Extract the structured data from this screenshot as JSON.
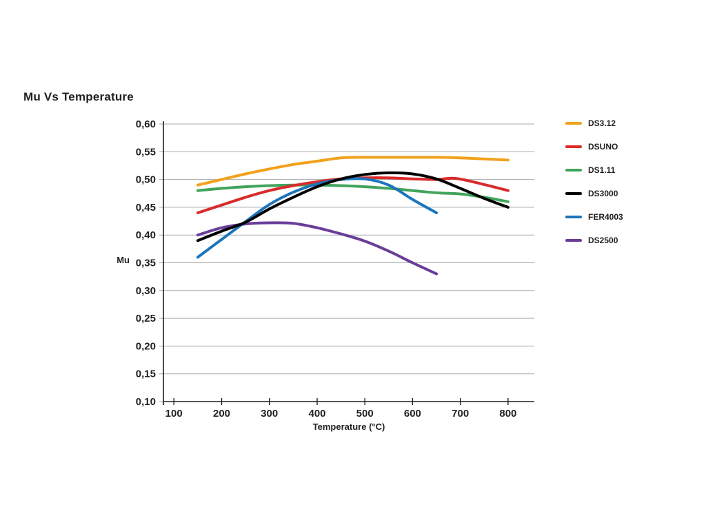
{
  "title": "Mu Vs Temperature",
  "chart_data": {
    "type": "line",
    "title": "Mu Vs Temperature",
    "xlabel": "Temperature (°C)",
    "ylabel": "Mu",
    "xlim": [
      78,
      855
    ],
    "ylim": [
      0.1,
      0.6
    ],
    "xticks": [
      100,
      200,
      300,
      400,
      500,
      600,
      700,
      800
    ],
    "yticks": [
      0.6,
      0.55,
      0.5,
      0.45,
      0.4,
      0.35,
      0.3,
      0.25,
      0.2,
      0.15,
      0.1
    ],
    "ytick_labels": [
      "0,60",
      "0,55",
      "0,50",
      "0,45",
      "0,40",
      "0,35",
      "0,30",
      "0,25",
      "0,20",
      "0,15",
      "0,10"
    ],
    "grid": "horizontal",
    "legend_position": "right",
    "colors": {
      "grid": "#A7A9AC",
      "axis": "#231F20",
      "text": "#231F20",
      "background": "#FFFFFF"
    },
    "series": [
      {
        "name": "DS3.12",
        "color": "#F2A11C",
        "points": [
          [
            150,
            0.49
          ],
          [
            200,
            0.5
          ],
          [
            250,
            0.51
          ],
          [
            300,
            0.519
          ],
          [
            350,
            0.527
          ],
          [
            400,
            0.533
          ],
          [
            450,
            0.539
          ],
          [
            500,
            0.54
          ],
          [
            550,
            0.54
          ],
          [
            600,
            0.54
          ],
          [
            650,
            0.54
          ],
          [
            700,
            0.539
          ],
          [
            750,
            0.537
          ],
          [
            800,
            0.535
          ]
        ]
      },
      {
        "name": "DSUNO",
        "color": "#D92B2B",
        "points": [
          [
            150,
            0.44
          ],
          [
            200,
            0.454
          ],
          [
            250,
            0.468
          ],
          [
            300,
            0.48
          ],
          [
            350,
            0.489
          ],
          [
            400,
            0.496
          ],
          [
            450,
            0.501
          ],
          [
            500,
            0.503
          ],
          [
            550,
            0.503
          ],
          [
            600,
            0.501
          ],
          [
            650,
            0.5
          ],
          [
            690,
            0.502
          ],
          [
            750,
            0.491
          ],
          [
            800,
            0.48
          ]
        ]
      },
      {
        "name": "DS1.11",
        "color": "#41A45C",
        "points": [
          [
            150,
            0.48
          ],
          [
            200,
            0.484
          ],
          [
            250,
            0.487
          ],
          [
            300,
            0.489
          ],
          [
            350,
            0.49
          ],
          [
            400,
            0.49
          ],
          [
            450,
            0.489
          ],
          [
            500,
            0.487
          ],
          [
            550,
            0.484
          ],
          [
            600,
            0.48
          ],
          [
            650,
            0.476
          ],
          [
            700,
            0.474
          ],
          [
            750,
            0.468
          ],
          [
            800,
            0.46
          ]
        ]
      },
      {
        "name": "DS3000",
        "color": "#000000",
        "points": [
          [
            150,
            0.39
          ],
          [
            200,
            0.407
          ],
          [
            250,
            0.423
          ],
          [
            300,
            0.447
          ],
          [
            350,
            0.468
          ],
          [
            400,
            0.487
          ],
          [
            450,
            0.501
          ],
          [
            500,
            0.509
          ],
          [
            550,
            0.512
          ],
          [
            600,
            0.51
          ],
          [
            650,
            0.501
          ],
          [
            700,
            0.484
          ],
          [
            750,
            0.466
          ],
          [
            800,
            0.45
          ]
        ]
      },
      {
        "name": "FER4003",
        "color": "#1C75BC",
        "points": [
          [
            150,
            0.36
          ],
          [
            200,
            0.392
          ],
          [
            250,
            0.424
          ],
          [
            300,
            0.455
          ],
          [
            350,
            0.477
          ],
          [
            400,
            0.492
          ],
          [
            450,
            0.5
          ],
          [
            500,
            0.501
          ],
          [
            550,
            0.49
          ],
          [
            600,
            0.464
          ],
          [
            650,
            0.44
          ]
        ]
      },
      {
        "name": "DS2500",
        "color": "#6A3D98",
        "points": [
          [
            150,
            0.4
          ],
          [
            200,
            0.413
          ],
          [
            250,
            0.42
          ],
          [
            300,
            0.422
          ],
          [
            350,
            0.421
          ],
          [
            400,
            0.413
          ],
          [
            450,
            0.402
          ],
          [
            500,
            0.389
          ],
          [
            550,
            0.371
          ],
          [
            600,
            0.35
          ],
          [
            650,
            0.33
          ]
        ]
      }
    ]
  }
}
